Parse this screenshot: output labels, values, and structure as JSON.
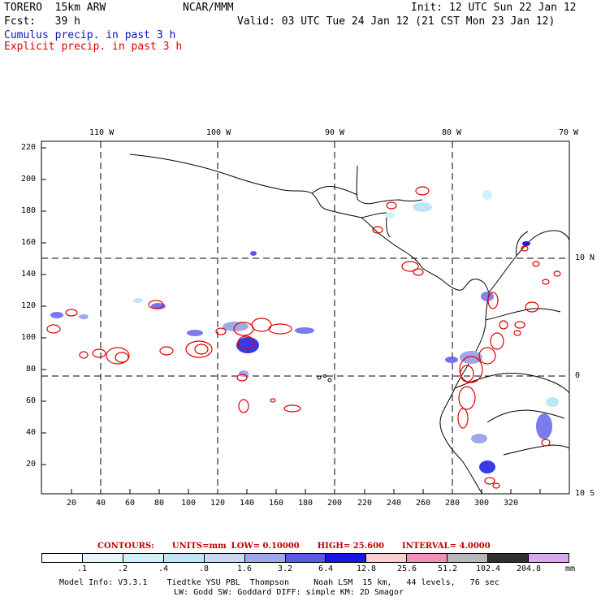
{
  "header": {
    "model": "TORERO  15km ARW",
    "org": "NCAR/MMM",
    "init": "Init: 12 UTC Sun 22 Jan 12",
    "fcst": "Fcst:   39 h",
    "valid": "Valid: 03 UTC Tue 24 Jan 12 (21 CST Mon 23 Jan 12)",
    "field1": "Cumulus precip. in past 3 h",
    "field2": "Explicit precip. in past 3 h"
  },
  "colors": {
    "cumulus": "#1010c0",
    "explicit": "#e00000",
    "grid": "#000000"
  },
  "map": {
    "lon_labels": [
      "110 W",
      "100 W",
      "90 W",
      "80 W",
      "70 W"
    ],
    "lat_labels": [
      "10 N",
      "0",
      "10 S"
    ],
    "y_ticks": [
      "220",
      "200",
      "180",
      "160",
      "140",
      "120",
      "100",
      "80",
      "60",
      "40",
      "20"
    ],
    "x_ticks": [
      "20",
      "40",
      "60",
      "80",
      "100",
      "120",
      "140",
      "160",
      "180",
      "200",
      "220",
      "240",
      "260",
      "280",
      "300",
      "320"
    ]
  },
  "contours_info": {
    "label": "CONTOURS:",
    "units": "UNITS=mm",
    "low": "LOW= 0.10000",
    "high": "HIGH=  25.600",
    "interval": "INTERVAL= 4.0000"
  },
  "legend": {
    "levels": [
      ".1",
      ".2",
      ".4",
      ".8",
      "1.6",
      "3.2",
      "6.4",
      "12.8",
      "25.6",
      "51.2",
      "102.4",
      "204.8"
    ],
    "unit": "mm",
    "colors": [
      "#ffffff",
      "#e8f6fb",
      "#d2f0f8",
      "#bfe5f7",
      "#c8d8f2",
      "#a0a8ec",
      "#5a5ae8",
      "#1818e0",
      "#f8d0d0",
      "#f090b8",
      "#b8b8b8",
      "#303030",
      "#d8a8f0"
    ]
  },
  "footer": {
    "line1": "Model Info: V3.3.1    Tiedtke YSU PBL  Thompson     Noah LSM  15 km,   44 levels,   76 sec",
    "line2": "LW: Godd SW: Goddard DIFF: simple KM: 2D Smagor"
  }
}
